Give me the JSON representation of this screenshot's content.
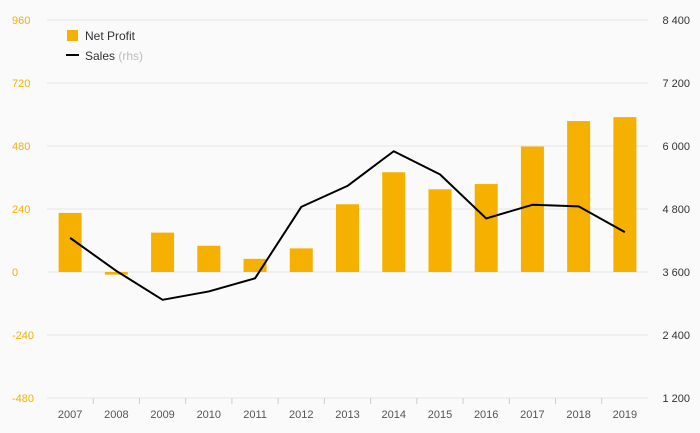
{
  "chart_data": {
    "type": "bar",
    "categories": [
      "2007",
      "2008",
      "2009",
      "2010",
      "2011",
      "2012",
      "2013",
      "2014",
      "2015",
      "2016",
      "2017",
      "2018",
      "2019"
    ],
    "series": [
      {
        "name": "Net Profit",
        "type": "bar",
        "axis": "left",
        "color": "#f5b000",
        "values": [
          225,
          -10,
          150,
          100,
          50,
          90,
          258,
          380,
          315,
          335,
          478,
          575,
          590
        ]
      },
      {
        "name": "Sales",
        "type": "line",
        "axis": "right",
        "color": "#000000",
        "values": [
          4250,
          3620,
          3070,
          3230,
          3480,
          4840,
          5240,
          5900,
          5460,
          4620,
          4880,
          4850,
          4360
        ]
      }
    ],
    "left_axis": {
      "ticks": [
        "960",
        "720",
        "480",
        "240",
        "0",
        "-240",
        "-480"
      ],
      "ylim": [
        -480,
        960
      ],
      "color": "#f5b000"
    },
    "right_axis": {
      "ticks": [
        "8 400",
        "7 200",
        "6 000",
        "4 800",
        "3 600",
        "2 400",
        "1 200"
      ],
      "ylim": [
        1200,
        8400
      ],
      "color": "#000000"
    },
    "legend": {
      "position": "top-left",
      "items": [
        {
          "label": "Net Profit",
          "suffix": "",
          "color": "#f5b000",
          "shape": "square"
        },
        {
          "label": "Sales",
          "suffix": "(rhs)",
          "color": "#000000",
          "shape": "line"
        }
      ]
    },
    "grid": true
  }
}
